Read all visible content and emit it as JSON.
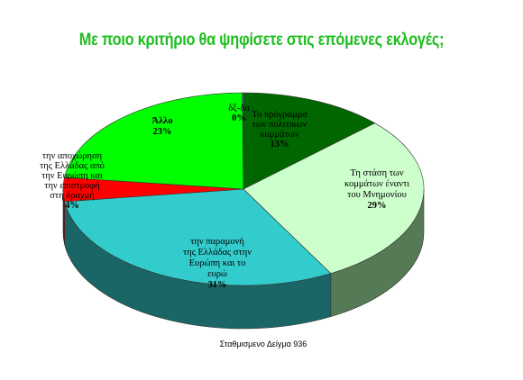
{
  "title": "Με ποιο κριτήριο θα ψηφίσετε στις επόμενες εκλογές;",
  "footnote": "Σταθμισμενο Δείγμα 936",
  "chart_data": {
    "type": "pie",
    "three_d": true,
    "title": "Με ποιο κριτήριο θα ψηφίσετε στις επόμενες εκλογές;",
    "slices": [
      {
        "label": "Το πρόγραμμα των πολιτικων κομμάτων",
        "value": 13,
        "display": "13%",
        "color": "#006600",
        "side_color": "#003d00"
      },
      {
        "label": "Τη στάση των κομμάτων έναντι του Μνημονίου",
        "value": 29,
        "display": "29%",
        "color": "#ccffcc",
        "side_color": "#557a55"
      },
      {
        "label": "την παραμονή της Ελλάδας στην Ευρώπη και το ευρώ",
        "value": 31,
        "display": "31%",
        "color": "#33cccc",
        "side_color": "#1a6666"
      },
      {
        "label": "την αποχώρηση της Ελλάδας από την Ευρώπη και την επιστροφή στη δραχμή",
        "value": 4,
        "display": "4%",
        "color": "#ff0000",
        "side_color": "#8a0000"
      },
      {
        "label": "Άλλο",
        "value": 23,
        "display": "23%",
        "color": "#00ff00",
        "side_color": "#009900"
      },
      {
        "label": "δξ-δα",
        "value": 0,
        "display": "0%",
        "color": "#6666cc",
        "side_color": "#333366"
      }
    ]
  },
  "labels": [
    {
      "lines": [
        "Το πρόγραμμα",
        "των πολιτικων",
        "κομμάτων"
      ],
      "pct": "13%"
    },
    {
      "lines": [
        "Τη στάση των",
        "κομμάτων έναντι",
        "του Μνημονίου"
      ],
      "pct": "29%"
    },
    {
      "lines": [
        "την παραμονή",
        "της Ελλάδας στην",
        "Ευρώπη και το",
        "ευρώ"
      ],
      "pct": "31%"
    },
    {
      "lines": [
        "την αποχώρηση",
        "της Ελλάδας από",
        "την Ευρώπη και",
        "την επιστροφή",
        "στη δραχμή"
      ],
      "pct": "4%"
    },
    {
      "lines": [
        "Άλλο"
      ],
      "pct": "23%"
    },
    {
      "lines": [
        "δξ-δα"
      ],
      "pct": "0%"
    }
  ]
}
